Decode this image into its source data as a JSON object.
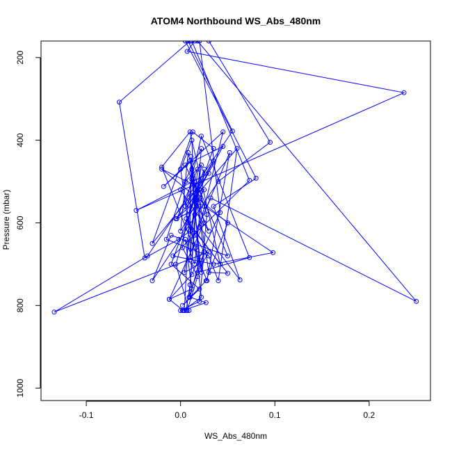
{
  "chart_data": {
    "type": "line",
    "title": "ATOM4 Northbound WS_Abs_480nm",
    "xlabel": "WS_Abs_480nm",
    "ylabel": "Pressure (mbar)",
    "xlim": [
      -0.148,
      0.265
    ],
    "ylim": [
      1030,
      160
    ],
    "y_reversed": true,
    "x_ticks": [
      -0.1,
      0.0,
      0.1,
      0.2
    ],
    "x_tick_labels": [
      "-0.1",
      "0.0",
      "0.1",
      "0.2"
    ],
    "y_ticks": [
      200,
      400,
      600,
      800,
      1000
    ],
    "y_tick_labels": [
      "200",
      "400",
      "600",
      "800",
      "1000"
    ],
    "grid": false,
    "legend": "none",
    "series_color": "#0000ff",
    "marker": "open-circle",
    "series": [
      {
        "x": [
          0.015,
          0.007,
          0.237,
          -0.047,
          0.03,
          -0.03,
          0.013,
          0.035,
          -0.01,
          0.02,
          0.002,
          0.027,
          0.05,
          -0.02,
          0.025,
          0.0,
          0.008,
          0.021,
          -0.004,
          0.018,
          0.01,
          0.011,
          0.02,
          0.004,
          0.017,
          0.009,
          0.025,
          0.02,
          0.0
        ],
        "y": [
          160,
          185,
          285,
          570,
          480,
          650,
          380,
          420,
          700,
          760,
          800,
          740,
          600,
          470,
          520,
          620,
          430,
          560,
          590,
          470,
          690,
          440,
          700,
          720,
          530,
          780,
          670,
          790,
          812
        ]
      },
      {
        "x": [
          0.01,
          -0.065,
          -0.038,
          -0.002,
          0.01,
          0.02,
          -0.005,
          0.06,
          0.04,
          0.03,
          -0.015,
          0.005,
          0.022,
          0.015,
          0.012,
          0.0,
          0.008,
          0.02,
          0.01,
          0.027,
          0.002
        ],
        "y": [
          160,
          308,
          685,
          640,
          620,
          540,
          590,
          420,
          740,
          680,
          640,
          500,
          460,
          580,
          400,
          470,
          600,
          690,
          780,
          793,
          812
        ]
      },
      {
        "x": [
          0.03,
          0.095,
          0.04,
          -0.03,
          -0.01,
          0.05,
          0.02,
          0.008,
          0.025,
          0.015,
          0.005,
          0.012,
          -0.012,
          0.003
        ],
        "y": [
          160,
          405,
          500,
          740,
          630,
          680,
          520,
          580,
          470,
          700,
          640,
          760,
          785,
          812
        ]
      },
      {
        "x": [
          0.005,
          0.08,
          0.035,
          0.063,
          0.02,
          0.045,
          -0.018,
          0.01,
          0.028,
          0.022,
          0.012,
          0.002,
          0.018,
          0.007
        ],
        "y": [
          160,
          492,
          560,
          738,
          610,
          380,
          512,
          450,
          580,
          720,
          495,
          660,
          730,
          812
        ]
      },
      {
        "x": [
          0.012,
          0.073,
          -0.008,
          0.035,
          0.098,
          0.025,
          0.005,
          0.045,
          0.015,
          0.03,
          0.0,
          0.022,
          0.01,
          0.006
        ],
        "y": [
          160,
          497,
          680,
          700,
          672,
          560,
          460,
          415,
          540,
          620,
          520,
          420,
          750,
          812
        ]
      },
      {
        "x": [
          0.018,
          0.25,
          0.032,
          0.015,
          0.052,
          0.028,
          -0.02,
          0.01,
          0.042,
          0.006,
          0.025,
          0.012,
          0.004
        ],
        "y": [
          160,
          790,
          540,
          630,
          430,
          740,
          465,
          380,
          700,
          590,
          670,
          470,
          812
        ]
      },
      {
        "x": [
          0.008,
          0.055,
          -0.035,
          -0.134,
          0.03,
          0.018,
          0.073,
          0.022,
          0.005,
          0.035,
          0.014,
          -0.005,
          0.009
        ],
        "y": [
          160,
          378,
          680,
          816,
          670,
          720,
          684,
          390,
          560,
          450,
          545,
          700,
          812
        ]
      },
      {
        "x": [
          0.02,
          0.042,
          0.012,
          -0.012,
          0.025,
          0.015,
          0.03,
          0.05,
          0.008,
          0.016,
          0.022,
          0.003
        ],
        "y": [
          160,
          575,
          725,
          785,
          600,
          500,
          720,
          722,
          600,
          660,
          780,
          812
        ]
      }
    ]
  }
}
